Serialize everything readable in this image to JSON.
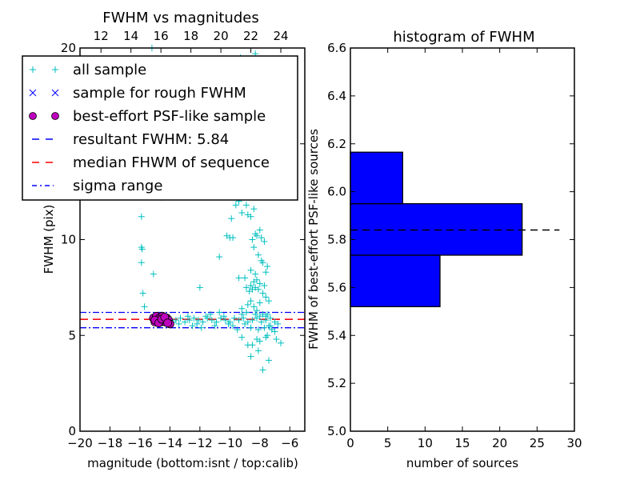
{
  "chart_data": [
    {
      "type": "scatter",
      "title": "FWHM vs magnitudes",
      "xlabel": "magnitude (bottom:isnt / top:calib)",
      "ylabel": "FWHM (pix)",
      "xlim": [
        -20,
        -5
      ],
      "ylim": [
        0,
        20
      ],
      "xticks": [
        -20,
        -18,
        -16,
        -14,
        -12,
        -10,
        -8,
        -6
      ],
      "xtick_labels": [
        "−20",
        "−18",
        "−16",
        "−14",
        "−12",
        "−10",
        "−8",
        "−6"
      ],
      "yticks": [
        0,
        5,
        10,
        15,
        20
      ],
      "ytick_labels": [
        "0",
        "5",
        "10",
        "15",
        "20"
      ],
      "top_xlim": [
        10.6,
        25.6
      ],
      "top_xticks": [
        12,
        14,
        16,
        18,
        20,
        22,
        24
      ],
      "top_xtick_labels": [
        "12",
        "14",
        "16",
        "18",
        "20",
        "22",
        "24"
      ],
      "legend": {
        "placement": "upper-left",
        "entries": [
          {
            "label": "all sample",
            "marker": "plus",
            "color": "#00bfbf"
          },
          {
            "label": "sample for rough FWHM",
            "marker": "x",
            "color": "#0000ff"
          },
          {
            "label": "best-effort PSF-like sample",
            "marker": "circle",
            "color": "#bf00bf"
          },
          {
            "label": "resultant FWHM: 5.84",
            "marker": "dash",
            "color": "#0000ff"
          },
          {
            "label": "median FHWM of sequence",
            "marker": "dash",
            "color": "#ff0000"
          },
          {
            "label": "sigma range",
            "marker": "dashdot",
            "color": "#0000ff"
          }
        ]
      },
      "lines": {
        "resultant_fwhm": 5.84,
        "median_fwhm": 5.84,
        "sigma_range": [
          5.4,
          6.2
        ]
      },
      "series": [
        {
          "name": "all sample",
          "points": [
            [
              -15.2,
              20
            ],
            [
              -9.3,
              19.5
            ],
            [
              -9.0,
              19.4
            ],
            [
              -8.3,
              19.7
            ],
            [
              -8.1,
              19.3
            ],
            [
              -15.9,
              11.2
            ],
            [
              -14.6,
              12.2
            ],
            [
              -14.5,
              12.5
            ],
            [
              -15.9,
              9.6
            ],
            [
              -15.85,
              9.5
            ],
            [
              -15.9,
              8.8
            ],
            [
              -15.1,
              8.2
            ],
            [
              -15.8,
              7.2
            ],
            [
              -15.7,
              6.5
            ],
            [
              -12.0,
              7.5
            ],
            [
              -10.7,
              9.1
            ],
            [
              -10.2,
              10.2
            ],
            [
              -10.0,
              10.1
            ],
            [
              -9.8,
              10.1
            ],
            [
              -9.9,
              11.1
            ],
            [
              -9.6,
              11.8
            ],
            [
              -9.4,
              12.0
            ],
            [
              -9.2,
              11.4
            ],
            [
              -8.9,
              11.8
            ],
            [
              -8.8,
              11.3
            ],
            [
              -8.6,
              11.2
            ],
            [
              -8.4,
              11.6
            ],
            [
              -9.4,
              8.0
            ],
            [
              -9.0,
              8.0
            ],
            [
              -8.9,
              7.5
            ],
            [
              -8.7,
              7.3
            ],
            [
              -8.5,
              7.4
            ],
            [
              -8.3,
              7.5
            ],
            [
              -8.1,
              7.4
            ],
            [
              -7.8,
              7.2
            ],
            [
              -7.6,
              7.0
            ],
            [
              -7.4,
              6.8
            ],
            [
              -9.2,
              6.4
            ],
            [
              -8.8,
              6.6
            ],
            [
              -8.6,
              6.8
            ],
            [
              -8.4,
              6.5
            ],
            [
              -8.2,
              6.3
            ],
            [
              -8.0,
              6.7
            ],
            [
              -7.8,
              6.1
            ],
            [
              -7.6,
              6.0
            ],
            [
              -7.3,
              5.5
            ],
            [
              -8.5,
              10.0
            ],
            [
              -8.3,
              10.3
            ],
            [
              -8.2,
              10.2
            ],
            [
              -8.0,
              10.5
            ],
            [
              -7.9,
              10.1
            ],
            [
              -7.7,
              9.9
            ],
            [
              -8.4,
              9.6
            ],
            [
              -8.1,
              9.2
            ],
            [
              -7.9,
              8.9
            ],
            [
              -7.8,
              8.8
            ],
            [
              -7.5,
              8.6
            ],
            [
              -8.6,
              8.4
            ],
            [
              -8.3,
              8.2
            ],
            [
              -7.6,
              8.3
            ],
            [
              -8.6,
              7.6
            ],
            [
              -8.4,
              7.8
            ],
            [
              -8.2,
              7.9
            ],
            [
              -8.0,
              7.7
            ],
            [
              -7.7,
              7.6
            ],
            [
              -7.2,
              5.3
            ],
            [
              -7.0,
              5.2
            ],
            [
              -7.5,
              5.0
            ],
            [
              -7.6,
              4.9
            ],
            [
              -8.2,
              4.8
            ],
            [
              -8.0,
              4.7
            ],
            [
              -8.5,
              4.5
            ],
            [
              -8.1,
              4.2
            ],
            [
              -8.8,
              4.5
            ],
            [
              -9.2,
              4.9
            ],
            [
              -6.9,
              4.8
            ],
            [
              -6.6,
              4.6
            ],
            [
              -8.6,
              3.9
            ],
            [
              -7.4,
              3.7
            ],
            [
              -7.8,
              3.2
            ],
            [
              -13.6,
              5.8
            ],
            [
              -13.3,
              5.9
            ],
            [
              -13.0,
              5.7
            ],
            [
              -12.7,
              5.8
            ],
            [
              -12.4,
              5.9
            ],
            [
              -12.1,
              5.8
            ],
            [
              -11.8,
              5.7
            ],
            [
              -11.5,
              5.9
            ],
            [
              -11.2,
              5.8
            ],
            [
              -10.9,
              5.7
            ],
            [
              -10.6,
              5.9
            ],
            [
              -10.3,
              5.8
            ],
            [
              -10.0,
              5.7
            ],
            [
              -9.7,
              5.9
            ],
            [
              -9.4,
              5.8
            ],
            [
              -9.1,
              5.9
            ],
            [
              -8.8,
              5.7
            ],
            [
              -8.5,
              5.8
            ],
            [
              -8.2,
              5.9
            ],
            [
              -7.9,
              5.7
            ],
            [
              -7.6,
              5.8
            ],
            [
              -7.3,
              5.9
            ],
            [
              -7.0,
              5.7
            ],
            [
              -6.8,
              5.6
            ],
            [
              -13.4,
              5.6
            ],
            [
              -12.8,
              6.0
            ],
            [
              -12.2,
              5.6
            ],
            [
              -11.6,
              6.0
            ],
            [
              -11.0,
              5.5
            ],
            [
              -10.4,
              6.0
            ],
            [
              -9.8,
              5.5
            ],
            [
              -9.2,
              6.1
            ],
            [
              -8.6,
              5.4
            ],
            [
              -8.0,
              6.0
            ],
            [
              -7.4,
              5.5
            ],
            [
              -13.8,
              5.7
            ],
            [
              -12.5,
              5.5
            ],
            [
              -11.3,
              6.1
            ],
            [
              -10.1,
              5.6
            ],
            [
              -9.0,
              5.6
            ],
            [
              -8.3,
              6.1
            ],
            [
              -7.7,
              5.4
            ],
            [
              -11.9,
              5.4
            ],
            [
              -10.7,
              6.2
            ],
            [
              -9.5,
              5.3
            ],
            [
              -8.9,
              6.2
            ],
            [
              -8.1,
              5.3
            ],
            [
              -7.5,
              6.1
            ]
          ]
        },
        {
          "name": "best-effort PSF-like sample",
          "points": [
            [
              -15.1,
              5.9
            ],
            [
              -15.0,
              5.7
            ],
            [
              -14.9,
              6.0
            ],
            [
              -14.8,
              5.8
            ],
            [
              -14.7,
              5.9
            ],
            [
              -14.6,
              5.7
            ],
            [
              -14.5,
              6.0
            ],
            [
              -14.4,
              5.8
            ],
            [
              -14.3,
              5.7
            ],
            [
              -14.2,
              5.9
            ],
            [
              -14.1,
              5.8
            ],
            [
              -14.0,
              5.6
            ],
            [
              -15.0,
              5.8
            ],
            [
              -14.75,
              5.65
            ],
            [
              -14.55,
              5.85
            ],
            [
              -14.35,
              5.95
            ],
            [
              -14.15,
              5.65
            ]
          ]
        }
      ]
    },
    {
      "type": "bar",
      "orientation": "horizontal",
      "title": "histogram of FWHM",
      "xlabel": "number of sources",
      "ylabel": "FWHM of best-effort PSF-like sources",
      "xlim": [
        0,
        30
      ],
      "ylim": [
        5.0,
        6.6
      ],
      "xticks": [
        0,
        5,
        10,
        15,
        20,
        25,
        30
      ],
      "xtick_labels": [
        "0",
        "5",
        "10",
        "15",
        "20",
        "25",
        "30"
      ],
      "yticks": [
        5.0,
        5.2,
        5.4,
        5.6,
        5.8,
        6.0,
        6.2,
        6.4,
        6.6
      ],
      "ytick_labels": [
        "5.0",
        "5.2",
        "5.4",
        "5.6",
        "5.8",
        "6.0",
        "6.2",
        "6.4",
        "6.6"
      ],
      "bins": [
        {
          "from": 5.52,
          "to": 5.735,
          "count": 12
        },
        {
          "from": 5.735,
          "to": 5.95,
          "count": 23
        },
        {
          "from": 5.95,
          "to": 6.165,
          "count": 7
        }
      ],
      "bar_color": "#0000ff",
      "reference_line": {
        "value": 5.84,
        "style": "dashed",
        "color": "#000000",
        "x_extent": [
          0,
          28
        ]
      }
    }
  ]
}
